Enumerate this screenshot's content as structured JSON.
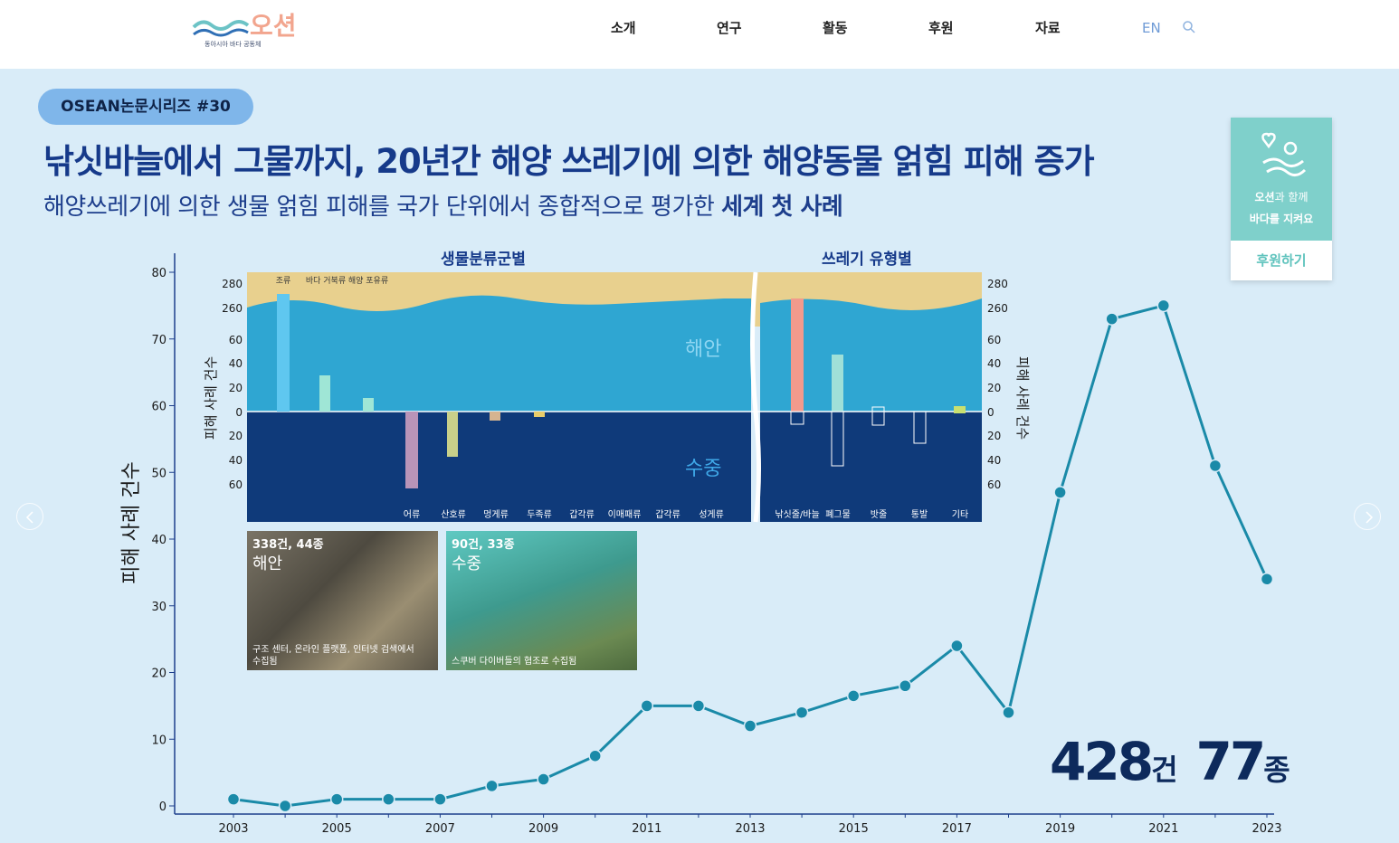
{
  "header": {
    "logo_text": "오션",
    "logo_sub": "동아시아 바다 공동체",
    "nav": [
      "소개",
      "연구",
      "활동",
      "후원",
      "자료"
    ],
    "lang": "EN"
  },
  "article": {
    "badge": "OSEAN논문시리즈 #30",
    "headline": "낚싯바늘에서 그물까지, 20년간 해양 쓰레기에 의한 해양동물 얽힘 피해 증가",
    "subhead_regular": "해양쓰레기에 의한 생물 얽힘 피해를 국가 단위에서 종합적으로 평가한 ",
    "subhead_bold": "세계 첫 사례"
  },
  "inset": {
    "title_taxa": "생물분류군별",
    "title_debris": "쓰레기 유형별",
    "ylabel": "피해 사례 건수",
    "coast_label": "해안",
    "water_label": "수중",
    "coast_taxa": [
      "조류",
      "바다\n거북류",
      "해양\n포유류"
    ],
    "water_taxa": [
      "어류",
      "산호류",
      "멍게류",
      "두족류",
      "갑각류",
      "이매패류",
      "갑각류",
      "성게류"
    ],
    "debris_types": [
      "낚싯줄/바늘",
      "폐그물",
      "밧줄",
      "통발",
      "기타"
    ],
    "top_ticks": [
      "280",
      "260",
      "60",
      "40",
      "20",
      "0"
    ],
    "bottom_ticks": [
      "20",
      "40",
      "60"
    ],
    "photos": [
      {
        "count": "338건, 44종",
        "label": "해안",
        "caption": "구조 센터, 온라인 플랫폼, 인터넷 검색에서 수집됨"
      },
      {
        "count": "90건, 33종",
        "label": "수중",
        "caption": "스쿠버 다이버들의 협조로 수집됨"
      }
    ]
  },
  "totals": {
    "cases": "428",
    "cases_unit": "건",
    "species": "77",
    "species_unit": "종"
  },
  "donate": {
    "line1_bold": "오션",
    "line1_rest": "과 함께",
    "line2": "바다를 지켜요",
    "button": "후원하기"
  },
  "chart_data": {
    "type": "line",
    "title": "",
    "ylabel": "피해 사례 건수",
    "xlabel": "",
    "x": [
      2003,
      2004,
      2005,
      2006,
      2007,
      2008,
      2009,
      2010,
      2011,
      2012,
      2013,
      2014,
      2015,
      2016,
      2017,
      2018,
      2019,
      2020,
      2021,
      2022,
      2023
    ],
    "values": [
      1,
      0,
      1,
      1,
      1,
      3,
      4,
      7.5,
      15,
      15,
      12,
      14,
      16.5,
      18,
      24,
      14,
      47,
      73,
      75,
      51,
      34
    ],
    "xticks": [
      "2003",
      "2005",
      "2007",
      "2009",
      "2011",
      "2013",
      "2015",
      "2017",
      "2019",
      "2021",
      "2023"
    ],
    "yticks": [
      "0",
      "10",
      "20",
      "30",
      "40",
      "50",
      "60",
      "70",
      "80"
    ],
    "ylim": [
      0,
      80
    ],
    "grid": false,
    "color": "#1a8aa8"
  }
}
